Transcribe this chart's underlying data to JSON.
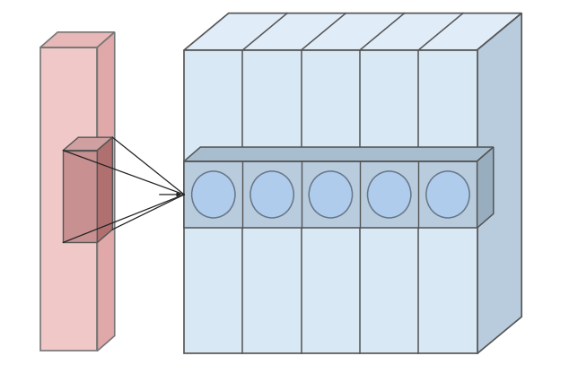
{
  "background_color": "#ffffff",
  "input_face_color": "#f0c8c8",
  "input_top_color": "#e8b8b8",
  "input_side_color": "#e0a8a8",
  "input_edge_color": "#777777",
  "rf_face_color": "#c89090",
  "rf_side_color": "#b07070",
  "rf_top_color": "#d0a0a0",
  "rf_edge_color": "#555555",
  "vol_face_color": "#d8e8f5",
  "vol_top_color": "#e0ecf8",
  "vol_side_color": "#b8ccde",
  "vol_edge_color": "#555555",
  "divider_color": "#555555",
  "rect_face_color": "#b8ccde",
  "rect_top_color": "#a8bece",
  "rect_side_color": "#98aebe",
  "rect_edge_color": "#555555",
  "circle_face_color": "#b0ccec",
  "circle_edge_color": "#667788",
  "arrow_color": "#222222",
  "fig_width": 6.34,
  "fig_height": 4.26,
  "dpi": 100
}
